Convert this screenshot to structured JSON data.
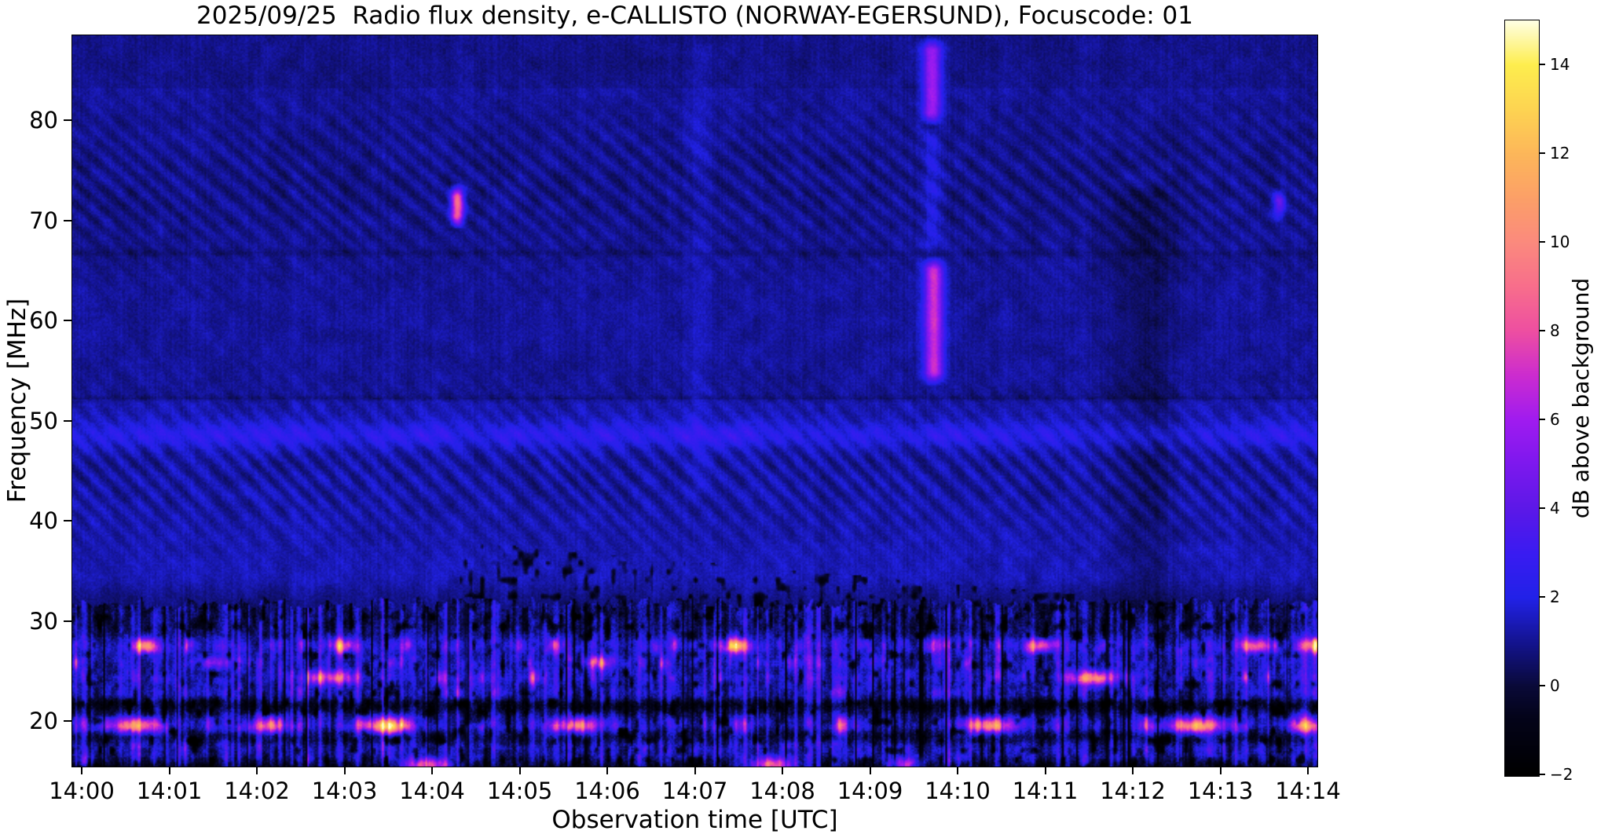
{
  "title": "2025/09/25  Radio flux density, e-CALLISTO (NORWAY-EGERSUND), Focuscode: 01",
  "chart_data": {
    "type": "heatmap",
    "title": "2025/09/25  Radio flux density, e-CALLISTO (NORWAY-EGERSUND), Focuscode: 01",
    "xlabel": "Observation time [UTC]",
    "ylabel": "Frequency [MHz]",
    "colorbar_label": "dB above background",
    "x_axis": {
      "tick_labels": [
        "14:00",
        "14:01",
        "14:02",
        "14:03",
        "14:04",
        "14:05",
        "14:06",
        "14:07",
        "14:08",
        "14:09",
        "14:10",
        "14:11",
        "14:12",
        "14:13",
        "14:14"
      ],
      "tick_interval_s": 60,
      "range_minutes_after_1400": [
        -0.108,
        14.11
      ]
    },
    "y_axis": {
      "tick_labels": [
        "20",
        "30",
        "40",
        "50",
        "60",
        "70",
        "80"
      ],
      "tick_values": [
        20,
        30,
        40,
        50,
        60,
        70,
        80
      ],
      "range_mhz": [
        15.45,
        88.47
      ]
    },
    "colorbar": {
      "tick_labels": [
        "14",
        "12",
        "10",
        "8",
        "6",
        "4",
        "2",
        "0",
        "−2"
      ],
      "tick_values": [
        14,
        12,
        10,
        8,
        6,
        4,
        2,
        0,
        -2
      ],
      "range_db": [
        -2,
        15
      ]
    },
    "colormap_stops": [
      [
        -2,
        "#000000"
      ],
      [
        -0.7,
        "#04041a"
      ],
      [
        0,
        "#0a0a38"
      ],
      [
        1,
        "#141490"
      ],
      [
        2,
        "#2222e8"
      ],
      [
        3,
        "#3a1cf2"
      ],
      [
        4,
        "#5c18e8"
      ],
      [
        5,
        "#7d18ee"
      ],
      [
        6,
        "#a01cf0"
      ],
      [
        7,
        "#cc2cd0"
      ],
      [
        8,
        "#ee4fa2"
      ],
      [
        9,
        "#f86e8c"
      ],
      [
        10,
        "#fb8a7e"
      ],
      [
        11,
        "#fca068"
      ],
      [
        12,
        "#fdb75a"
      ],
      [
        13,
        "#fdd452"
      ],
      [
        14,
        "#feee4e"
      ],
      [
        15,
        "#ffffe4"
      ]
    ],
    "spectrogram": {
      "description": "Quiet-sun blue background with diagonal interference ripples near 64-82 MHz and 37-52 MHz, strong broadcast RFI band below ~31 MHz, vertical burst streaks near 14:04.3 (70-74 MHz), 14:09.7 (54-66 and 80-88 MHz) and 14:13.7 (70-73 MHz).",
      "base_db": {
        "above_83": 0.95,
        "mid_52_83": 1.15,
        "mid_31_52": 1.5,
        "low_band": -0.55
      },
      "low_band_top_mhz": 31.2,
      "ripple_bands": [
        {
          "fc": 73.5,
          "half": 8.5,
          "amp": 0.8,
          "kt": 3.5,
          "kf": 0.45,
          "wob": 2.2,
          "seed": 41
        },
        {
          "fc": 45.0,
          "half": 8.0,
          "amp": 1.0,
          "kt": 3.8,
          "kf": 0.42,
          "wob": 2.4,
          "seed": 42
        }
      ],
      "crest_line": {
        "f": 48.6,
        "amp": 1.4,
        "sigma": 0.9,
        "rate": 2.0
      },
      "seams_mhz": [
        66.8,
        52.25
      ],
      "diag_dashes": {
        "t0": 4.3,
        "t1": 12.6,
        "f_start": 36.5,
        "slope": -0.75,
        "thresh": 0.34,
        "gain": 8
      },
      "rfi_lines": [
        {
          "f": 27.6,
          "base": 1.3,
          "sigma": 0.6,
          "spot_peak": 5,
          "spot_pow": 5,
          "spot_rate": 55
        },
        {
          "f": 25.9,
          "base": 0.9,
          "sigma": 0.55,
          "spot_peak": 3,
          "spot_pow": 5,
          "spot_rate": 50
        },
        {
          "f": 24.4,
          "base": 1.0,
          "sigma": 0.55,
          "spot_peak": 3.5,
          "spot_pow": 5,
          "spot_rate": 45
        },
        {
          "f": 22.9,
          "base": 0.7,
          "sigma": 0.5,
          "spot_peak": 2,
          "spot_pow": 5,
          "spot_rate": 40
        },
        {
          "f": 21.6,
          "base": -1.4,
          "sigma": 0.45,
          "spot_peak": 0,
          "spot_pow": 1,
          "spot_rate": 1
        },
        {
          "f": 19.6,
          "base": 1.0,
          "sigma": 0.65,
          "spot_peak": 4,
          "spot_pow": 4,
          "spot_rate": 35
        },
        {
          "f": 18.6,
          "base": -1.1,
          "sigma": 0.5,
          "spot_peak": 0,
          "spot_pow": 1,
          "spot_rate": 1
        },
        {
          "f": 17.4,
          "base": 0.7,
          "sigma": 0.6,
          "spot_peak": 2.5,
          "spot_pow": 5,
          "spot_rate": 42
        },
        {
          "f": 16.1,
          "base": 0.2,
          "sigma": 0.5,
          "spot_peak": 2,
          "spot_pow": 6,
          "spot_rate": 38
        }
      ],
      "burst_features": [
        {
          "t": 4.28,
          "f_lo": 69.2,
          "f_hi": 73.8,
          "pk": 8,
          "w": 3
        },
        {
          "t": 9.7,
          "f_lo": 79.5,
          "f_hi": 88.4,
          "pk": 5,
          "w": 4.5
        },
        {
          "t": 9.7,
          "f_lo": 66.5,
          "f_hi": 79.5,
          "pk": 1.2,
          "w": 4.5
        },
        {
          "t": 9.72,
          "f_lo": 53.5,
          "f_hi": 66.5,
          "pk": 6,
          "w": 4.5
        },
        {
          "t": 13.66,
          "f_lo": 69.8,
          "f_hi": 73.4,
          "pk": 3.2,
          "w": 3
        },
        {
          "t": 12.12,
          "f_lo": 30.0,
          "f_hi": 74.0,
          "pk": -0.7,
          "w": 15
        },
        {
          "t": 7.05,
          "f_lo": 42.0,
          "f_hi": 88.0,
          "pk": 0.5,
          "w": 5
        }
      ],
      "hot_spots": [
        {
          "t": 0.6,
          "f": 19.6,
          "pk": 9,
          "w": 12,
          "sf": 0.55
        },
        {
          "t": 2.1,
          "f": 19.6,
          "pk": 7,
          "w": 9,
          "sf": 0.55
        },
        {
          "t": 3.45,
          "f": 19.6,
          "pk": 10,
          "w": 12,
          "sf": 0.55
        },
        {
          "t": 5.63,
          "f": 19.6,
          "pk": 9,
          "w": 11,
          "sf": 0.55
        },
        {
          "t": 10.35,
          "f": 19.6,
          "pk": 9,
          "w": 11,
          "sf": 0.55
        },
        {
          "t": 12.72,
          "f": 19.6,
          "pk": 10,
          "w": 13,
          "sf": 0.55
        },
        {
          "t": 13.95,
          "f": 19.6,
          "pk": 7,
          "w": 8,
          "sf": 0.55
        },
        {
          "t": 2.9,
          "f": 24.4,
          "pk": 7,
          "w": 10,
          "sf": 0.5
        },
        {
          "t": 11.53,
          "f": 24.4,
          "pk": 9,
          "w": 11,
          "sf": 0.5
        },
        {
          "t": 0.7,
          "f": 27.6,
          "pk": 7,
          "w": 7,
          "sf": 0.5
        },
        {
          "t": 3.0,
          "f": 27.6,
          "pk": 6,
          "w": 6,
          "sf": 0.5
        },
        {
          "t": 7.45,
          "f": 27.6,
          "pk": 8,
          "w": 8,
          "sf": 0.5
        },
        {
          "t": 10.95,
          "f": 27.6,
          "pk": 7,
          "w": 7,
          "sf": 0.5
        },
        {
          "t": 13.4,
          "f": 27.6,
          "pk": 7,
          "w": 7,
          "sf": 0.5
        },
        {
          "t": 14.0,
          "f": 27.6,
          "pk": 6,
          "w": 6,
          "sf": 0.5
        },
        {
          "t": 1.5,
          "f": 25.9,
          "pk": 4,
          "w": 8,
          "sf": 0.45
        },
        {
          "t": 5.9,
          "f": 25.9,
          "pk": 5,
          "w": 8,
          "sf": 0.45
        },
        {
          "t": 3.95,
          "f": 15.7,
          "pk": 9,
          "w": 12,
          "sf": 0.5
        },
        {
          "t": 7.88,
          "f": 15.7,
          "pk": 9,
          "w": 11,
          "sf": 0.5
        },
        {
          "t": 9.4,
          "f": 15.7,
          "pk": 7,
          "w": 9,
          "sf": 0.5
        }
      ]
    }
  }
}
